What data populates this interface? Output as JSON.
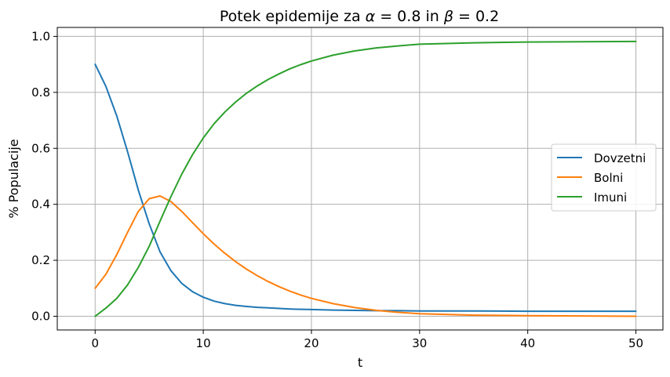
{
  "chart_data": {
    "type": "line",
    "title_prefix": "Potek epidemije za ",
    "title_alpha": "α",
    "title_alpha_eq": " = 0.8 in ",
    "title_beta": "β",
    "title_beta_eq": " = 0.2",
    "xlabel": "t",
    "ylabel": "% Populacije",
    "xlim": [
      -3.5,
      52.5
    ],
    "ylim": [
      -0.049,
      1.032
    ],
    "xticks": [
      0,
      10,
      20,
      30,
      40,
      50
    ],
    "yticks": [
      0.0,
      0.2,
      0.4,
      0.6,
      0.8,
      1.0
    ],
    "grid": true,
    "legend_position": "center-right",
    "series": [
      {
        "name": "Dovzetni",
        "color": "#1f77b4",
        "x": [
          0,
          1,
          2,
          3,
          4,
          5,
          6,
          7,
          8,
          9,
          10,
          11,
          12,
          13,
          14,
          15,
          16,
          17,
          18,
          19,
          20,
          22,
          24,
          26,
          28,
          30,
          35,
          40,
          45,
          50
        ],
        "values": [
          0.9,
          0.821,
          0.716,
          0.588,
          0.45,
          0.33,
          0.23,
          0.163,
          0.118,
          0.088,
          0.068,
          0.054,
          0.045,
          0.039,
          0.035,
          0.032,
          0.03,
          0.028,
          0.026,
          0.025,
          0.024,
          0.022,
          0.021,
          0.02,
          0.02,
          0.019,
          0.019,
          0.018,
          0.018,
          0.018
        ]
      },
      {
        "name": "Bolni",
        "color": "#ff7f0e",
        "x": [
          0,
          1,
          2,
          3,
          4,
          5,
          6,
          7,
          8,
          9,
          10,
          11,
          12,
          13,
          14,
          15,
          16,
          17,
          18,
          19,
          20,
          22,
          24,
          26,
          28,
          30,
          35,
          40,
          45,
          50
        ],
        "values": [
          0.1,
          0.15,
          0.22,
          0.3,
          0.375,
          0.42,
          0.43,
          0.41,
          0.375,
          0.335,
          0.295,
          0.258,
          0.225,
          0.195,
          0.168,
          0.145,
          0.124,
          0.106,
          0.09,
          0.076,
          0.064,
          0.045,
          0.031,
          0.021,
          0.014,
          0.009,
          0.004,
          0.002,
          0.001,
          0.0
        ]
      },
      {
        "name": "Imuni",
        "color": "#2ca02c",
        "x": [
          0,
          1,
          2,
          3,
          4,
          5,
          6,
          7,
          8,
          9,
          10,
          11,
          12,
          13,
          14,
          15,
          16,
          17,
          18,
          19,
          20,
          22,
          24,
          26,
          28,
          30,
          35,
          40,
          45,
          50
        ],
        "values": [
          0.0,
          0.029,
          0.064,
          0.112,
          0.175,
          0.25,
          0.34,
          0.427,
          0.507,
          0.577,
          0.637,
          0.688,
          0.73,
          0.766,
          0.797,
          0.823,
          0.846,
          0.866,
          0.884,
          0.899,
          0.912,
          0.933,
          0.948,
          0.959,
          0.966,
          0.972,
          0.977,
          0.98,
          0.981,
          0.982
        ]
      }
    ]
  }
}
